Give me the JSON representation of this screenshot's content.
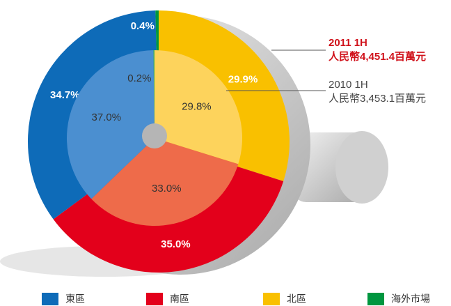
{
  "chart_data": {
    "type": "nested-pie",
    "categories": [
      "東區",
      "南區",
      "北區",
      "海外市場"
    ],
    "rings": [
      {
        "name": "2011 1H",
        "annotation": "人民幣4,451.4百萬元",
        "colors": [
          "#0e6bb8",
          "#e3001b",
          "#f9c000",
          "#00963f"
        ],
        "values": [
          34.7,
          35.0,
          29.9,
          0.4
        ],
        "value_labels": [
          "34.7%",
          "35.0%",
          "29.9%",
          "0.4%"
        ]
      },
      {
        "name": "2010 1H",
        "annotation": "人民幣3,453.1百萬元",
        "colors": [
          "#4b8fd0",
          "#ee6b4a",
          "#fdd35c",
          "#43b05c"
        ],
        "values": [
          37.0,
          33.0,
          29.8,
          0.2
        ],
        "value_labels": [
          "37.0%",
          "33.0%",
          "29.8%",
          "0.2%"
        ]
      }
    ]
  }
}
